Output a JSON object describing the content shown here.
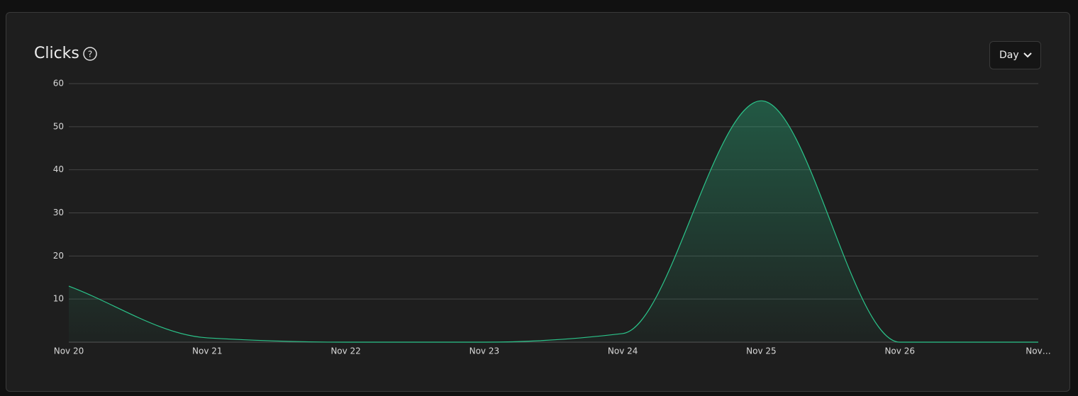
{
  "chart_data": {
    "type": "area",
    "title": "Clicks",
    "period": "Day",
    "categories": [
      "Nov 20",
      "Nov 21",
      "Nov 22",
      "Nov 23",
      "Nov 24",
      "Nov 25",
      "Nov 26",
      "Nov…"
    ],
    "values": [
      13,
      1,
      0,
      0,
      2,
      56,
      0,
      0
    ],
    "color": "#2bc48a",
    "ylim": [
      0,
      60
    ],
    "yticks": [
      10,
      20,
      30,
      40,
      50,
      60
    ],
    "grid": true
  }
}
